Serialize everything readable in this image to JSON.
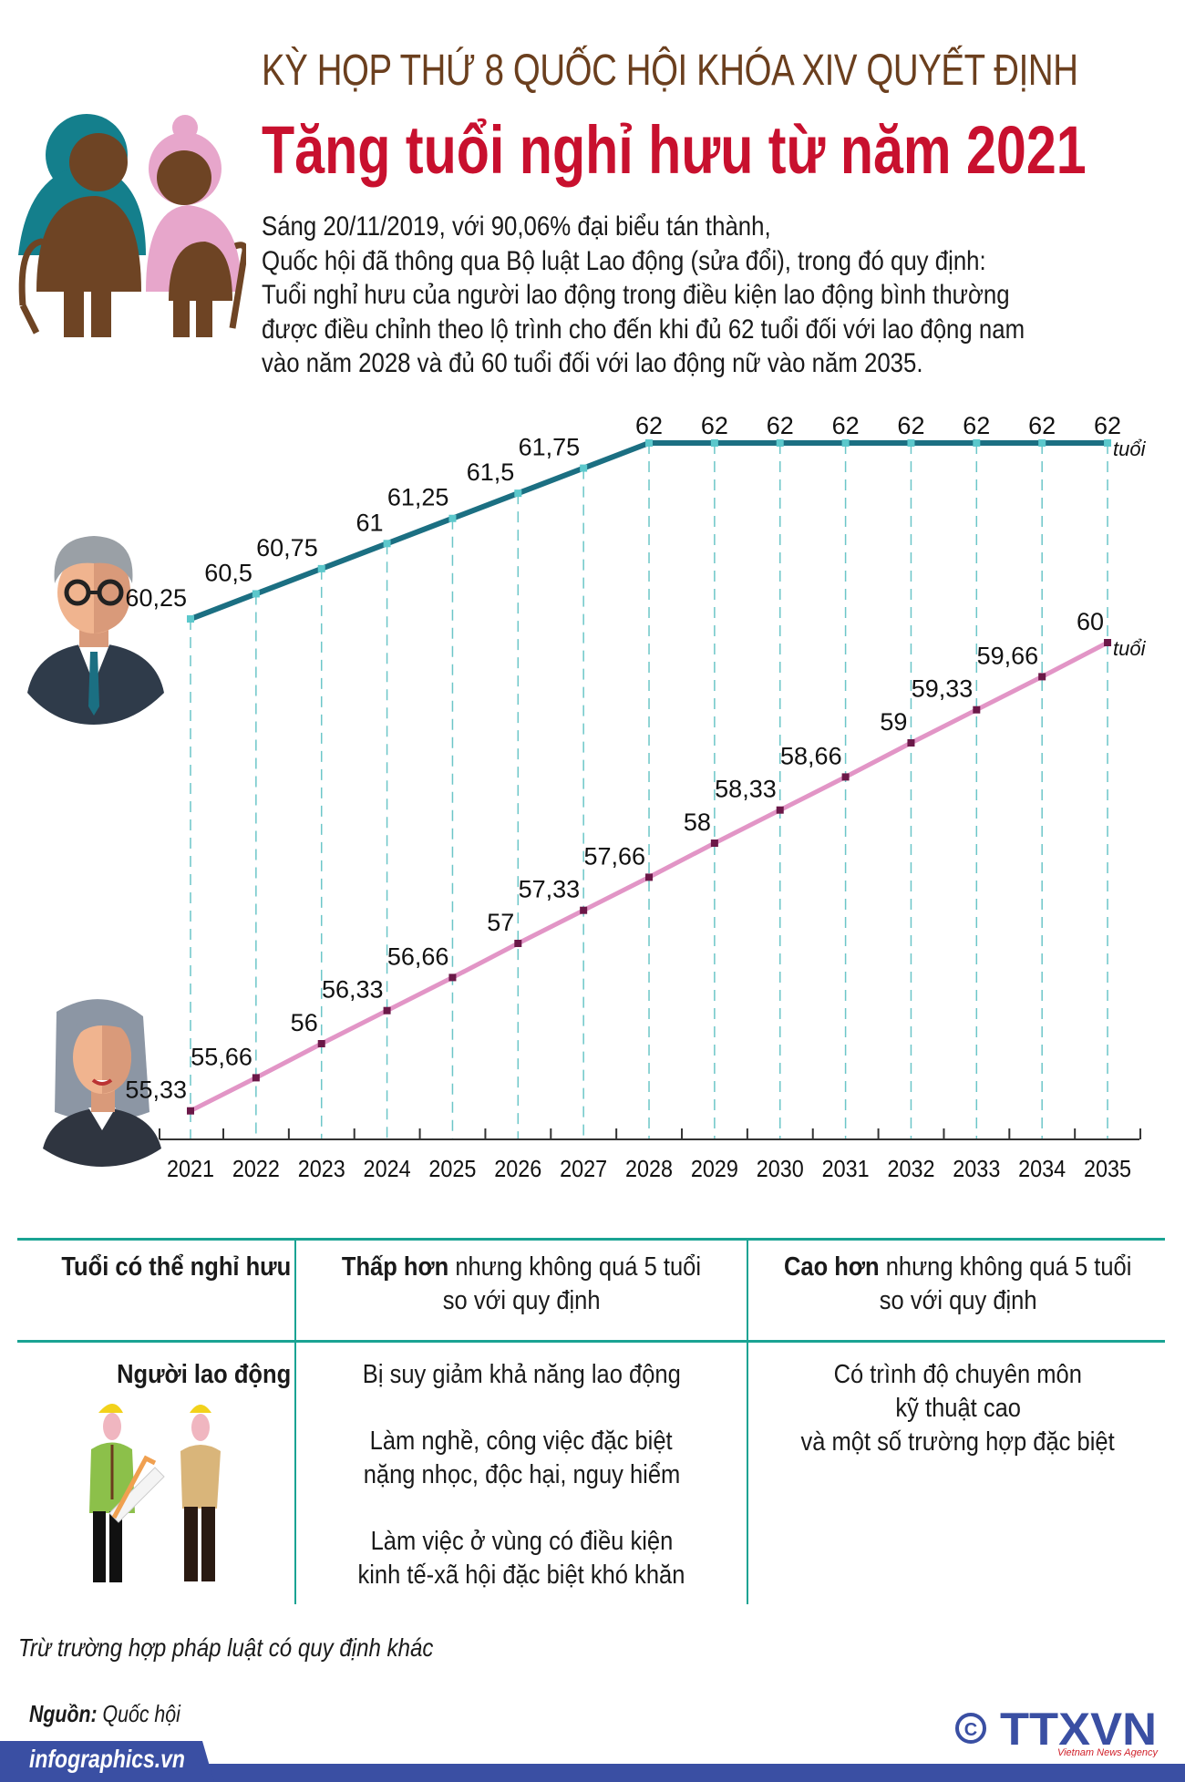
{
  "header": {
    "kicker": "KỲ HỌP THỨ 8 QUỐC HỘI KHÓA XIV QUYẾT ĐỊNH",
    "title": "Tăng tuổi nghỉ hưu từ năm 2021",
    "intro": [
      "Sáng 20/11/2019, với 90,06% đại biểu tán thành,",
      "Quốc hội đã thông qua Bộ luật Lao động (sửa đổi), trong đó quy định:",
      "Tuổi nghỉ hưu của người lao động trong điều kiện lao động bình thường",
      "được điều chỉnh theo lộ trình cho đến khi đủ 62 tuổi đối với lao động nam",
      "vào năm 2028 và đủ 60 tuổi đối với lao động nữ vào năm 2035."
    ]
  },
  "chart_data": {
    "type": "line",
    "x": [
      2021,
      2022,
      2023,
      2024,
      2025,
      2026,
      2027,
      2028,
      2029,
      2030,
      2031,
      2032,
      2033,
      2034,
      2035
    ],
    "x_tick_labels": [
      "2021",
      "2022",
      "2023",
      "2024",
      "2025",
      "2026",
      "2027",
      "2028",
      "2029",
      "2030",
      "2031",
      "2032",
      "2033",
      "2034",
      "2035"
    ],
    "unit_label": "tuổi",
    "grid": false,
    "series": [
      {
        "values": [
          60.25,
          60.5,
          60.75,
          61,
          61.25,
          61.5,
          61.75,
          62,
          62,
          62,
          62,
          62,
          62,
          62,
          62
        ],
        "labels": [
          "60,25",
          "60,5",
          "60,75",
          "61",
          "61,25",
          "61,5",
          "61,75",
          "62",
          "62",
          "62",
          "62",
          "62",
          "62",
          "62",
          "62"
        ],
        "color": "#1b6f82",
        "marker_color": "#5cc8cc"
      },
      {
        "values": [
          55.33,
          55.66,
          56,
          56.33,
          56.66,
          57,
          57.33,
          57.66,
          58,
          58.33,
          58.66,
          59,
          59.33,
          59.66,
          60
        ],
        "labels": [
          "55,33",
          "55,66",
          "56",
          "56,33",
          "56,66",
          "57",
          "57,33",
          "57,66",
          "58",
          "58,33",
          "58,66",
          "59",
          "59,33",
          "59,66",
          "60"
        ],
        "color": "#e295c6",
        "marker_color": "#6b1848"
      }
    ]
  },
  "table": {
    "header_row": {
      "label": "Tuổi có thể nghỉ hưu",
      "col1_bold": "Thấp hơn",
      "col1_rest": " nhưng không quá 5 tuổi",
      "col1_line2": "so với quy định",
      "col2_bold": "Cao hơn",
      "col2_rest": " nhưng không quá 5 tuổi",
      "col2_line2": "so với quy định"
    },
    "body_row": {
      "label": "Người lao động",
      "col1": [
        "Bị suy giảm khả năng lao động",
        "",
        "Làm nghề, công việc đặc biệt",
        "nặng nhọc, độc hại, nguy hiểm",
        "",
        "Làm việc ở vùng có điều kiện",
        "kinh tế-xã hội đặc biệt khó khăn"
      ],
      "col2": [
        "Có trình độ chuyên môn",
        "kỹ thuật cao",
        "và một số trường hợp đặc biệt"
      ]
    }
  },
  "footnote": "Trừ trường hợp pháp luật có quy định khác",
  "source": {
    "label": "Nguồn:",
    "value": " Quốc hội"
  },
  "footer": {
    "site": "infographics.vn",
    "logo_text": "TTXVN",
    "logo_sub": "Vietnam News Agency",
    "copyright": "©"
  },
  "colors": {
    "brand_red": "#c8102e",
    "brown": "#6b3f1e",
    "teal": "#1aa393",
    "footer_blue": "#3a4fa3"
  }
}
